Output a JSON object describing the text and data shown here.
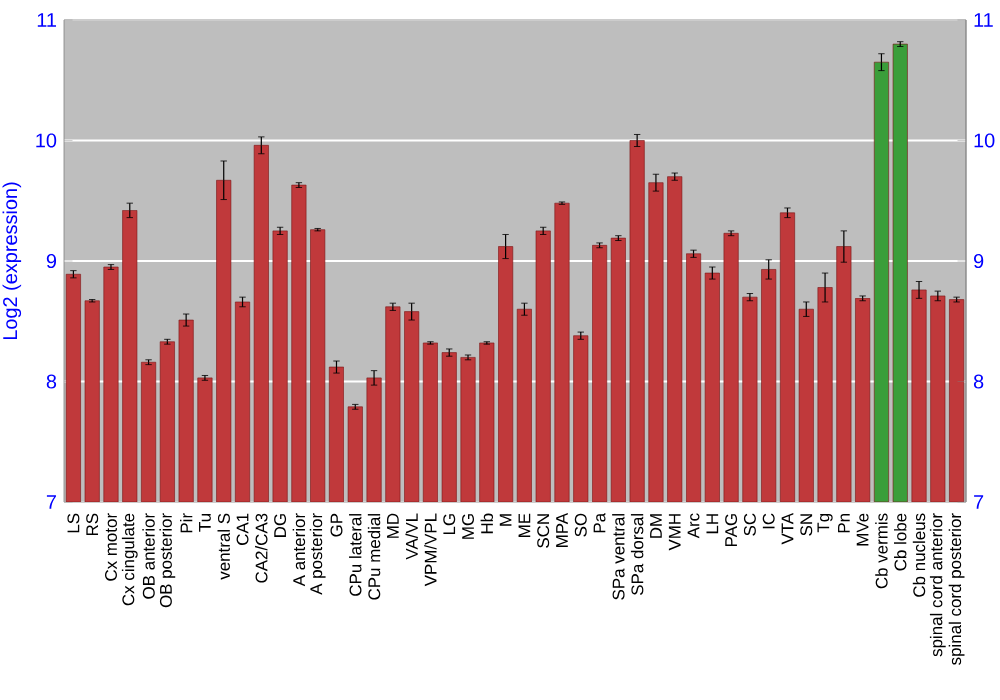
{
  "chart_data": {
    "type": "bar",
    "ylabel": "Log2 (expression)",
    "categories": [
      "LS",
      "RS",
      "Cx motor",
      "Cx cingulate",
      "OB anterior",
      "OB posterior",
      "Pir",
      "Tu",
      "ventral S",
      "CA1",
      "CA2/CA3",
      "DG",
      "A anterior",
      "A posterior",
      "GP",
      "CPu lateral",
      "CPu medial",
      "MD",
      "VA/VL",
      "VPM/VPL",
      "LG",
      "MG",
      "Hb",
      "M",
      "ME",
      "SCN",
      "MPA",
      "SO",
      "Pa",
      "SPa ventral",
      "SPa dorsal",
      "DM",
      "VMH",
      "Arc",
      "LH",
      "PAG",
      "SC",
      "IC",
      "VTA",
      "SN",
      "Tg",
      "Pn",
      "MVe",
      "Cb vermis",
      "Cb lobe",
      "Cb nucleus",
      "spinal cord anterior",
      "spinal cord posterior"
    ],
    "values": [
      8.89,
      8.67,
      8.95,
      9.42,
      8.16,
      8.33,
      8.51,
      8.03,
      9.67,
      8.66,
      9.96,
      9.25,
      9.63,
      9.26,
      8.12,
      7.79,
      8.03,
      8.62,
      8.58,
      8.32,
      8.24,
      8.2,
      8.32,
      9.12,
      8.6,
      9.25,
      9.48,
      8.38,
      9.13,
      9.19,
      10.0,
      9.65,
      9.7,
      9.06,
      8.9,
      9.23,
      8.7,
      8.93,
      9.4,
      8.6,
      8.78,
      9.12,
      8.69,
      10.65,
      10.8,
      8.76,
      8.71,
      8.68
    ],
    "errors": [
      0.03,
      0.01,
      0.02,
      0.06,
      0.02,
      0.02,
      0.05,
      0.02,
      0.16,
      0.04,
      0.07,
      0.03,
      0.02,
      0.01,
      0.05,
      0.02,
      0.06,
      0.03,
      0.07,
      0.01,
      0.03,
      0.02,
      0.01,
      0.1,
      0.05,
      0.03,
      0.01,
      0.03,
      0.02,
      0.02,
      0.05,
      0.07,
      0.03,
      0.03,
      0.05,
      0.02,
      0.03,
      0.08,
      0.04,
      0.06,
      0.12,
      0.13,
      0.02,
      0.07,
      0.02,
      0.07,
      0.04,
      0.02
    ],
    "colors": [
      "#c0393b",
      "#c0393b",
      "#c0393b",
      "#c0393b",
      "#c0393b",
      "#c0393b",
      "#c0393b",
      "#c0393b",
      "#c0393b",
      "#c0393b",
      "#c0393b",
      "#c0393b",
      "#c0393b",
      "#c0393b",
      "#c0393b",
      "#c0393b",
      "#c0393b",
      "#c0393b",
      "#c0393b",
      "#c0393b",
      "#c0393b",
      "#c0393b",
      "#c0393b",
      "#c0393b",
      "#c0393b",
      "#c0393b",
      "#c0393b",
      "#c0393b",
      "#c0393b",
      "#c0393b",
      "#c0393b",
      "#c0393b",
      "#c0393b",
      "#c0393b",
      "#c0393b",
      "#c0393b",
      "#c0393b",
      "#c0393b",
      "#c0393b",
      "#c0393b",
      "#c0393b",
      "#c0393b",
      "#c0393b",
      "#3a9e3a",
      "#3a9e3a",
      "#c0393b",
      "#c0393b",
      "#c0393b"
    ],
    "ylim": [
      7,
      11
    ],
    "yticks": [
      7,
      8,
      9,
      10,
      11
    ],
    "y2lim": [
      7,
      11
    ],
    "y2ticks": [
      7,
      8,
      9,
      10,
      11
    ],
    "grid": "y"
  }
}
